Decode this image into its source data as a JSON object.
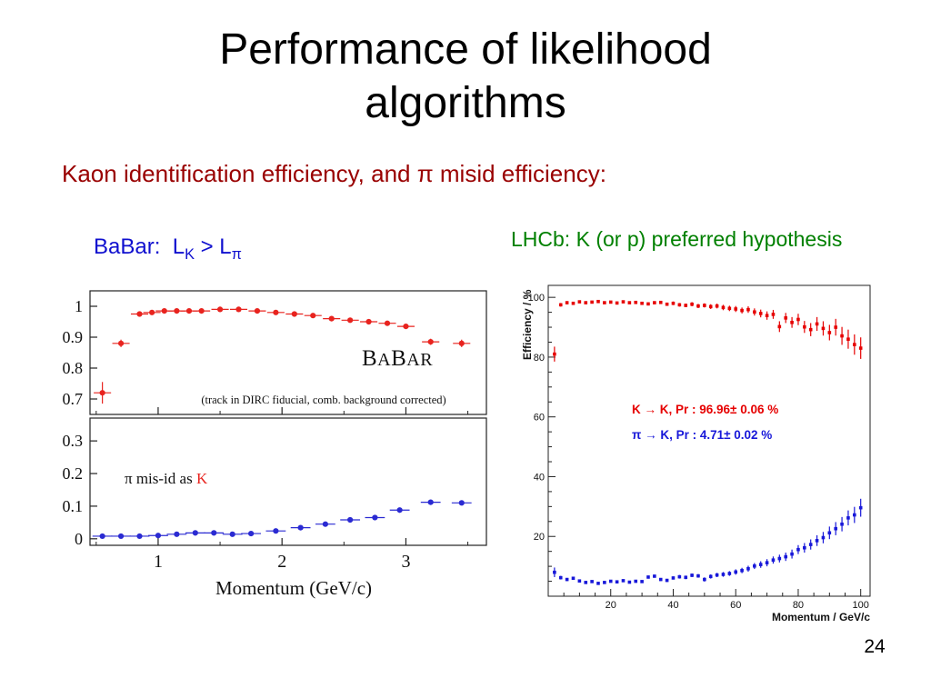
{
  "slide": {
    "title": "Performance of likelihood algorithms",
    "subtitle": "Kaon identification efficiency, and π misid efficiency:",
    "page_number": "24"
  },
  "captions": {
    "babar_prefix": "BaBar:  L",
    "babar_sub_k": "K",
    "babar_mid": " > L",
    "babar_sub_pi": "π",
    "lhcb": "LHCb: K (or p) preferred hypothesis"
  },
  "colors": {
    "subtitle": "#990000",
    "babar_caption": "#0f0fcf",
    "lhcb_caption": "#008000"
  },
  "chart_data": [
    {
      "id": "babar",
      "type": "scatter",
      "title": "BABAR",
      "note": "(track in DIRC fiducial, comb. background corrected)",
      "xlabel": "Momentum   (GeV/c)",
      "xlim": [
        0.45,
        3.65
      ],
      "xticks": [
        1,
        2,
        3
      ],
      "panels": [
        {
          "name": "kaon-id-efficiency",
          "ylim": [
            0.65,
            1.05
          ],
          "yticks": [
            0.7,
            0.8,
            0.9,
            1
          ],
          "series": [
            {
              "name": "kaon-efficiency",
              "color": "#e8231e",
              "xerr": 0.07,
              "x": [
                0.55,
                0.7,
                0.85,
                0.95,
                1.05,
                1.15,
                1.25,
                1.35,
                1.5,
                1.65,
                1.8,
                1.95,
                2.1,
                2.25,
                2.4,
                2.55,
                2.7,
                2.85,
                3.0,
                3.2,
                3.45
              ],
              "y": [
                0.72,
                0.88,
                0.975,
                0.98,
                0.985,
                0.985,
                0.985,
                0.985,
                0.99,
                0.99,
                0.985,
                0.98,
                0.975,
                0.97,
                0.96,
                0.955,
                0.95,
                0.945,
                0.935,
                0.885,
                0.88
              ],
              "yerr": [
                0.035,
                0.012,
                0.005,
                0.004,
                0.003,
                0.003,
                0.003,
                0.003,
                0.003,
                0.003,
                0.003,
                0.004,
                0.004,
                0.004,
                0.005,
                0.005,
                0.005,
                0.006,
                0.007,
                0.01,
                0.012
              ]
            }
          ]
        },
        {
          "name": "pi-misid-rate",
          "label_black": "π mis-id as ",
          "label_red": "K",
          "ylim": [
            -0.02,
            0.37
          ],
          "yticks": [
            0,
            0.1,
            0.2,
            0.3
          ],
          "series": [
            {
              "name": "pi-misid",
              "color": "#2a2ad2",
              "xerr": 0.08,
              "yerr": 0.004,
              "x": [
                0.55,
                0.7,
                0.85,
                1.0,
                1.15,
                1.3,
                1.45,
                1.6,
                1.75,
                1.95,
                2.15,
                2.35,
                2.55,
                2.75,
                2.95,
                3.2,
                3.45
              ],
              "y": [
                0.008,
                0.008,
                0.008,
                0.01,
                0.014,
                0.018,
                0.018,
                0.014,
                0.016,
                0.024,
                0.034,
                0.045,
                0.058,
                0.065,
                0.088,
                0.112,
                0.11
              ]
            }
          ]
        }
      ]
    },
    {
      "id": "lhcb",
      "type": "scatter",
      "xlabel": "Momentum / GeV/c",
      "ylabel": "Efficiency / %",
      "xlim": [
        0,
        103
      ],
      "ylim": [
        0,
        104
      ],
      "xticks": [
        20,
        40,
        60,
        80,
        100
      ],
      "yticks": [
        20,
        40,
        60,
        80,
        100
      ],
      "legend": [
        {
          "name": "k-to-k",
          "color": "#e60000",
          "text": "K → K, Pr : 96.96± 0.06 %"
        },
        {
          "name": "pi-to-k",
          "color": "#1717d9",
          "text": "π → K, Pr : 4.71± 0.02 %"
        }
      ],
      "series": [
        {
          "name": "k-to-k-efficiency",
          "color": "#e60000",
          "x": [
            2,
            4,
            6,
            8,
            10,
            12,
            14,
            16,
            18,
            20,
            22,
            24,
            26,
            28,
            30,
            32,
            34,
            36,
            38,
            40,
            42,
            44,
            46,
            48,
            50,
            52,
            54,
            56,
            58,
            60,
            62,
            64,
            66,
            68,
            70,
            72,
            74,
            76,
            78,
            80,
            82,
            84,
            86,
            88,
            90,
            92,
            94,
            96,
            98,
            100
          ],
          "y": [
            81.0,
            97.5,
            98.2,
            98.0,
            98.5,
            98.2,
            98.4,
            98.6,
            98.2,
            98.4,
            98.1,
            98.5,
            98.2,
            98.3,
            98.0,
            97.8,
            98.2,
            98.3,
            97.7,
            98.0,
            97.5,
            97.3,
            97.7,
            97.1,
            97.3,
            96.9,
            97.1,
            96.6,
            96.3,
            96.1,
            95.6,
            95.9,
            95.1,
            94.6,
            93.9,
            94.3,
            90.2,
            93.1,
            91.6,
            92.6,
            90.1,
            89.2,
            91.1,
            89.6,
            88.2,
            90.0,
            87.1,
            86.0,
            84.2,
            83.0
          ],
          "yerr": [
            2.5,
            0.6,
            0.5,
            0.5,
            0.4,
            0.4,
            0.4,
            0.4,
            0.4,
            0.4,
            0.4,
            0.4,
            0.4,
            0.4,
            0.5,
            0.5,
            0.5,
            0.5,
            0.5,
            0.6,
            0.6,
            0.6,
            0.7,
            0.7,
            0.7,
            0.8,
            0.8,
            0.9,
            0.9,
            1.0,
            1.0,
            1.1,
            1.2,
            1.3,
            1.4,
            1.5,
            1.8,
            1.7,
            1.8,
            1.9,
            2.0,
            2.2,
            2.3,
            2.4,
            2.6,
            2.8,
            3.0,
            3.2,
            3.4,
            3.6
          ]
        },
        {
          "name": "pi-to-k-efficiency",
          "color": "#1717d9",
          "x": [
            2,
            4,
            6,
            8,
            10,
            12,
            14,
            16,
            18,
            20,
            22,
            24,
            26,
            28,
            30,
            32,
            34,
            36,
            38,
            40,
            42,
            44,
            46,
            48,
            50,
            52,
            54,
            56,
            58,
            60,
            62,
            64,
            66,
            68,
            70,
            72,
            74,
            76,
            78,
            80,
            82,
            84,
            86,
            88,
            90,
            92,
            94,
            96,
            98,
            100
          ],
          "y": [
            8.0,
            6.2,
            5.6,
            6.0,
            5.1,
            4.6,
            4.9,
            4.3,
            4.6,
            5.0,
            4.8,
            5.2,
            4.7,
            5.0,
            4.9,
            6.4,
            6.7,
            5.6,
            5.3,
            6.1,
            6.5,
            6.3,
            7.0,
            6.8,
            5.6,
            6.6,
            7.1,
            7.3,
            7.6,
            8.1,
            8.6,
            9.2,
            10.1,
            10.6,
            11.2,
            12.1,
            12.6,
            13.2,
            14.1,
            15.6,
            16.2,
            17.3,
            18.6,
            19.6,
            21.2,
            22.6,
            24.1,
            26.2,
            27.2,
            29.6
          ],
          "yerr": [
            1.6,
            0.6,
            0.5,
            0.5,
            0.4,
            0.4,
            0.4,
            0.4,
            0.4,
            0.4,
            0.4,
            0.4,
            0.4,
            0.4,
            0.4,
            0.5,
            0.5,
            0.5,
            0.5,
            0.5,
            0.6,
            0.6,
            0.6,
            0.6,
            0.7,
            0.7,
            0.7,
            0.8,
            0.8,
            0.9,
            0.9,
            1.0,
            1.0,
            1.1,
            1.2,
            1.2,
            1.3,
            1.4,
            1.5,
            1.5,
            1.6,
            1.7,
            1.8,
            1.9,
            2.1,
            2.2,
            2.4,
            2.5,
            2.7,
            3.0
          ]
        }
      ]
    }
  ]
}
